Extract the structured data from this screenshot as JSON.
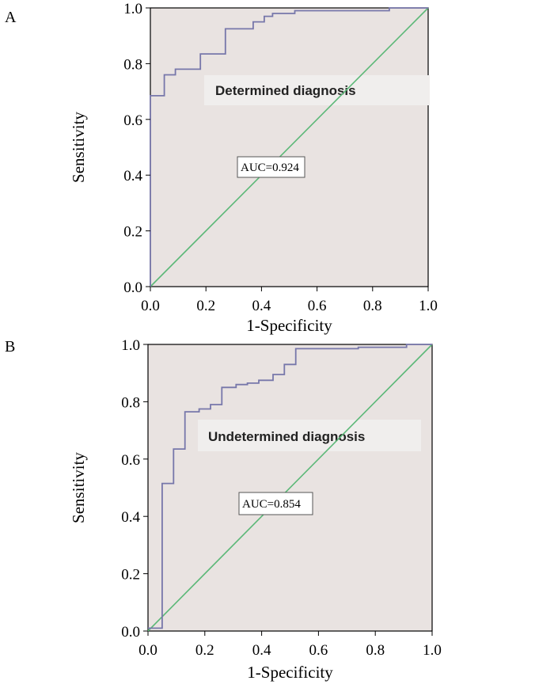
{
  "colors": {
    "plot_background": "#e9e3e1",
    "annotation_background": "#f0eeed",
    "roc_line": "#7777aa",
    "reference_line": "#5cb878",
    "axis": "#000000"
  },
  "chart_data": [
    {
      "type": "line",
      "panel_label": "A",
      "annotation": "Determined diagnosis",
      "auc_label": "AUC=0.924",
      "xlabel": "1-Specificity",
      "ylabel": "Sensitivity",
      "xlim": [
        0,
        1
      ],
      "ylim": [
        0,
        1
      ],
      "xticks": [
        "0.0",
        "0.2",
        "0.4",
        "0.6",
        "0.8",
        "1.0"
      ],
      "yticks": [
        "0.0",
        "0.2",
        "0.4",
        "0.6",
        "0.8",
        "1.0"
      ],
      "grid": false,
      "series": [
        {
          "x": [
            0,
            0,
            0.05,
            0.05,
            0.09,
            0.09,
            0.18,
            0.18,
            0.27,
            0.27,
            0.37,
            0.37,
            0.41,
            0.41,
            0.44,
            0.44,
            0.52,
            0.52,
            0.86,
            0.86,
            1.0
          ],
          "y": [
            0,
            0.685,
            0.685,
            0.76,
            0.76,
            0.78,
            0.78,
            0.835,
            0.835,
            0.925,
            0.925,
            0.95,
            0.95,
            0.97,
            0.97,
            0.98,
            0.98,
            0.99,
            0.99,
            1.0,
            1.0
          ]
        },
        {
          "x": [
            0,
            1
          ],
          "y": [
            0,
            1
          ]
        }
      ]
    },
    {
      "type": "line",
      "panel_label": "B",
      "annotation": "Undetermined diagnosis",
      "auc_label": "AUC=0.854",
      "xlabel": "1-Specificity",
      "ylabel": "Sensitivity",
      "xlim": [
        0,
        1
      ],
      "ylim": [
        0,
        1
      ],
      "xticks": [
        "0.0",
        "0.2",
        "0.4",
        "0.6",
        "0.8",
        "1.0"
      ],
      "yticks": [
        "0.0",
        "0.2",
        "0.4",
        "0.6",
        "0.8",
        "1.0"
      ],
      "grid": false,
      "series": [
        {
          "x": [
            0,
            0.05,
            0.05,
            0.09,
            0.09,
            0.13,
            0.13,
            0.18,
            0.18,
            0.22,
            0.22,
            0.26,
            0.26,
            0.31,
            0.31,
            0.35,
            0.35,
            0.39,
            0.39,
            0.44,
            0.44,
            0.48,
            0.48,
            0.52,
            0.52,
            0.74,
            0.74,
            0.91,
            0.91,
            1.0
          ],
          "y": [
            0.01,
            0.01,
            0.515,
            0.515,
            0.635,
            0.635,
            0.765,
            0.765,
            0.775,
            0.775,
            0.79,
            0.79,
            0.85,
            0.85,
            0.86,
            0.86,
            0.865,
            0.865,
            0.875,
            0.875,
            0.895,
            0.895,
            0.93,
            0.93,
            0.985,
            0.985,
            0.99,
            0.99,
            1.0,
            1.0
          ]
        },
        {
          "x": [
            0,
            1
          ],
          "y": [
            0,
            1
          ]
        }
      ]
    }
  ]
}
